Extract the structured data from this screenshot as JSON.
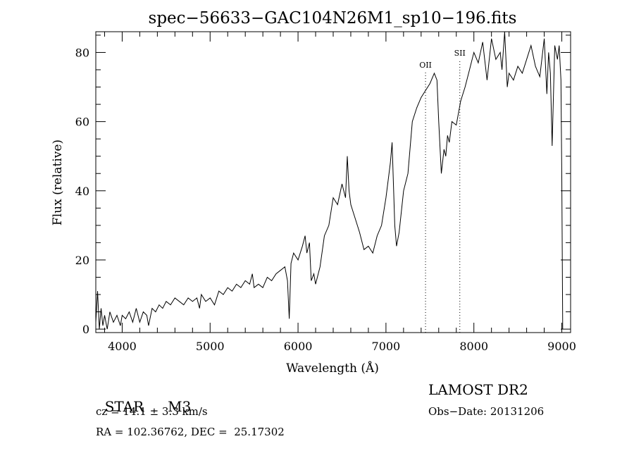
{
  "chart_data": {
    "type": "line",
    "title": "spec−56633−GAC104N26M1_sp10−196.fits",
    "xlabel": "Wavelength (Å)",
    "ylabel": "Flux (relative)",
    "xlim": [
      3700,
      9100
    ],
    "ylim": [
      -1,
      86
    ],
    "x_ticks": [
      4000,
      5000,
      6000,
      7000,
      8000,
      9000
    ],
    "x_tick_labels": [
      "4000",
      "5000",
      "6000",
      "7000",
      "8000",
      "9000"
    ],
    "y_ticks": [
      0,
      20,
      40,
      60,
      80
    ],
    "y_tick_labels": [
      "0",
      "20",
      "40",
      "60",
      "80"
    ],
    "grid": false,
    "series": [
      {
        "x": [
          3700,
          3720,
          3740,
          3760,
          3780,
          3800,
          3830,
          3860,
          3900,
          3940,
          3980,
          4000,
          4040,
          4080,
          4120,
          4160,
          4200,
          4240,
          4280,
          4300,
          4340,
          4380,
          4420,
          4460,
          4500,
          4550,
          4600,
          4650,
          4700,
          4750,
          4800,
          4850,
          4880,
          4900,
          4950,
          5000,
          5050,
          5100,
          5150,
          5200,
          5250,
          5300,
          5350,
          5400,
          5450,
          5480,
          5500,
          5550,
          5600,
          5650,
          5700,
          5750,
          5800,
          5850,
          5880,
          5900,
          5920,
          5950,
          6000,
          6050,
          6080,
          6100,
          6130,
          6150,
          6180,
          6200,
          6250,
          6300,
          6350,
          6400,
          6450,
          6500,
          6540,
          6560,
          6580,
          6600,
          6650,
          6700,
          6750,
          6800,
          6850,
          6900,
          6950,
          7000,
          7050,
          7070,
          7100,
          7120,
          7150,
          7200,
          7250,
          7300,
          7350,
          7400,
          7450,
          7500,
          7550,
          7580,
          7600,
          7630,
          7660,
          7680,
          7700,
          7720,
          7750,
          7800,
          7850,
          7900,
          7950,
          8000,
          8050,
          8100,
          8150,
          8200,
          8250,
          8300,
          8320,
          8350,
          8380,
          8400,
          8450,
          8500,
          8550,
          8600,
          8650,
          8700,
          8750,
          8800,
          8830,
          8850,
          8870,
          8890,
          8920,
          8950,
          8970,
          8990,
          9000,
          9010
        ],
        "y": [
          2,
          11,
          0,
          6,
          1,
          4,
          0,
          5,
          2,
          4,
          1,
          4,
          3,
          5,
          2,
          6,
          2,
          5,
          4,
          1,
          6,
          5,
          7,
          6,
          8,
          7,
          9,
          8,
          7,
          9,
          8,
          9,
          6,
          10,
          8,
          9,
          7,
          11,
          10,
          12,
          11,
          13,
          12,
          14,
          13,
          16,
          12,
          13,
          12,
          15,
          14,
          16,
          17,
          18,
          14,
          3,
          19,
          22,
          20,
          24,
          27,
          22,
          25,
          14,
          16,
          13,
          18,
          27,
          30,
          38,
          36,
          42,
          38,
          50,
          40,
          36,
          32,
          28,
          23,
          24,
          22,
          27,
          30,
          38,
          48,
          54,
          30,
          24,
          28,
          40,
          45,
          60,
          64,
          67,
          69,
          71,
          74,
          72,
          60,
          45,
          52,
          50,
          56,
          54,
          60,
          59,
          66,
          70,
          75,
          80,
          77,
          83,
          72,
          84,
          78,
          80,
          75,
          86,
          70,
          74,
          72,
          76,
          74,
          78,
          82,
          76,
          73,
          84,
          68,
          80,
          74,
          53,
          82,
          78,
          82,
          72,
          44,
          0
        ]
      }
    ],
    "annotations": [
      {
        "label": "OII",
        "x": 7450
      },
      {
        "label": "SII",
        "x": 7840
      }
    ]
  },
  "info": {
    "class_label": "STAR",
    "subclass": "M3",
    "survey": "LAMOST DR2",
    "cz": "cz = 14.1 ± 3.3 km/s",
    "obs_date": "Obs−Date: 20131206",
    "coords": "RA = 102.36762, DEC =  25.17302"
  }
}
